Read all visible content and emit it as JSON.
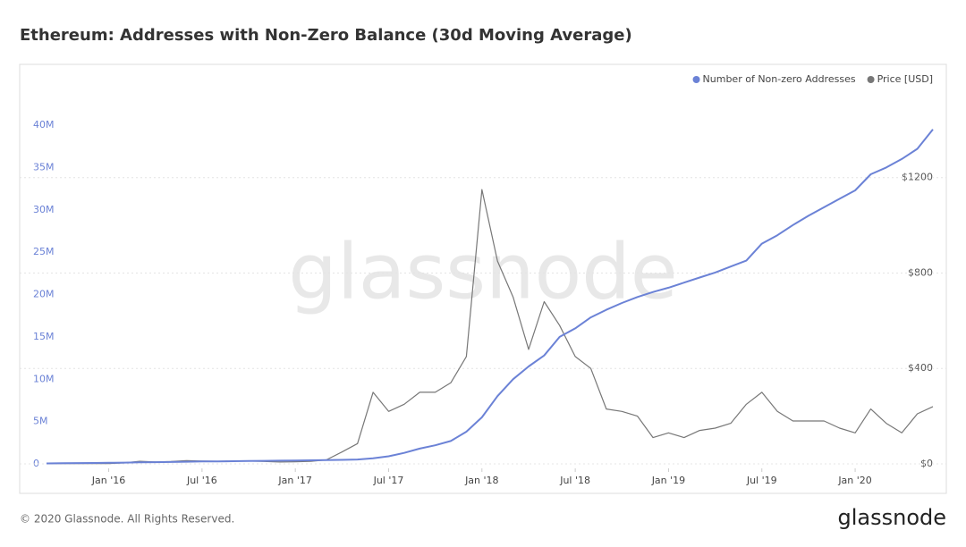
{
  "chart_data": {
    "type": "line",
    "title": "Ethereum: Addresses with Non-Zero Balance (30d Moving Average)",
    "watermark": "glassnode",
    "footer": "© 2020 Glassnode. All Rights Reserved.",
    "logo": "glassnode",
    "legend": "top-right",
    "x": [
      "2015-09",
      "2015-10",
      "2015-11",
      "2015-12",
      "2016-01",
      "2016-02",
      "2016-03",
      "2016-04",
      "2016-05",
      "2016-06",
      "2016-07",
      "2016-08",
      "2016-09",
      "2016-10",
      "2016-11",
      "2016-12",
      "2017-01",
      "2017-02",
      "2017-03",
      "2017-04",
      "2017-05",
      "2017-06",
      "2017-07",
      "2017-08",
      "2017-09",
      "2017-10",
      "2017-11",
      "2017-12",
      "2018-01",
      "2018-02",
      "2018-03",
      "2018-04",
      "2018-05",
      "2018-06",
      "2018-07",
      "2018-08",
      "2018-09",
      "2018-10",
      "2018-11",
      "2018-12",
      "2019-01",
      "2019-02",
      "2019-03",
      "2019-04",
      "2019-05",
      "2019-06",
      "2019-07",
      "2019-08",
      "2019-09",
      "2019-10",
      "2019-11",
      "2019-12",
      "2020-01",
      "2020-02",
      "2020-03",
      "2020-04",
      "2020-05",
      "2020-06"
    ],
    "xlim": [
      "2015-09",
      "2020-06"
    ],
    "xticks": [
      {
        "value": "2016-01",
        "label": "Jan '16"
      },
      {
        "value": "2016-07",
        "label": "Jul '16"
      },
      {
        "value": "2017-01",
        "label": "Jan '17"
      },
      {
        "value": "2017-07",
        "label": "Jul '17"
      },
      {
        "value": "2018-01",
        "label": "Jan '18"
      },
      {
        "value": "2018-07",
        "label": "Jul '18"
      },
      {
        "value": "2019-01",
        "label": "Jan '19"
      },
      {
        "value": "2019-07",
        "label": "Jul '19"
      },
      {
        "value": "2020-01",
        "label": "Jan '20"
      }
    ],
    "ylim": [
      0,
      40000000
    ],
    "yticks": [
      {
        "value": 0,
        "label": "0"
      },
      {
        "value": 5000000,
        "label": "5M"
      },
      {
        "value": 10000000,
        "label": "10M"
      },
      {
        "value": 15000000,
        "label": "15M"
      },
      {
        "value": 20000000,
        "label": "20M"
      },
      {
        "value": 25000000,
        "label": "25M"
      },
      {
        "value": 30000000,
        "label": "30M"
      },
      {
        "value": 35000000,
        "label": "35M"
      },
      {
        "value": 40000000,
        "label": "40M"
      }
    ],
    "y2lim": [
      0,
      1420
    ],
    "y2ticks": [
      {
        "value": 0,
        "label": "$0"
      },
      {
        "value": 400,
        "label": "$400"
      },
      {
        "value": 800,
        "label": "$800"
      },
      {
        "value": 1200,
        "label": "$1200"
      }
    ],
    "grid": true,
    "series": [
      {
        "name": "Number of Non-zero Addresses",
        "color": "#6b82d6",
        "values": [
          50000,
          70000,
          90000,
          110000,
          130000,
          150000,
          180000,
          200000,
          220000,
          250000,
          280000,
          300000,
          320000,
          340000,
          360000,
          380000,
          400000,
          420000,
          450000,
          480000,
          520000,
          650000,
          900000,
          1300000,
          1800000,
          2200000,
          2700000,
          3800000,
          5500000,
          8000000,
          10000000,
          11500000,
          12800000,
          15000000,
          16000000,
          17300000,
          18200000,
          19000000,
          19700000,
          20300000,
          20800000,
          21400000,
          22000000,
          22600000,
          23300000,
          24000000,
          26000000,
          27000000,
          28200000,
          29300000,
          30300000,
          31300000,
          32300000,
          34200000,
          35000000,
          36000000,
          37200000,
          39500000
        ]
      },
      {
        "name": "Price [USD]",
        "color": "#777777",
        "axis": "y2",
        "values": [
          1,
          1,
          1,
          1,
          1,
          4,
          11,
          8,
          10,
          14,
          12,
          11,
          12,
          12,
          10,
          8,
          9,
          11,
          17,
          50,
          85,
          300,
          220,
          250,
          300,
          300,
          340,
          450,
          1150,
          850,
          700,
          480,
          680,
          580,
          450,
          400,
          230,
          220,
          200,
          110,
          130,
          110,
          140,
          150,
          170,
          250,
          300,
          220,
          180,
          180,
          180,
          150,
          130,
          230,
          170,
          130,
          210,
          240
        ]
      }
    ]
  }
}
